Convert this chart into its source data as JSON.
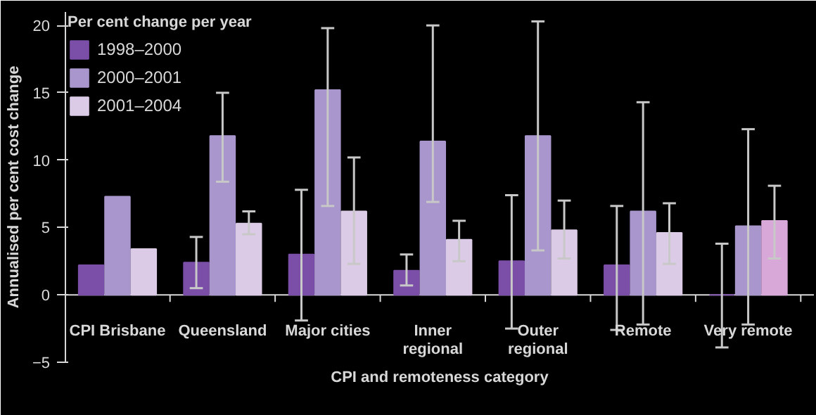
{
  "chart_data": {
    "type": "bar",
    "xlabel": "CPI and remoteness category",
    "ylabel": "Annualised per cent cost change",
    "legend_title": "Per cent change per year",
    "categories": [
      "CPI Brisbane",
      "Queensland",
      "Major cities",
      "Inner\nregional",
      "Outer\nregional",
      "Remote",
      "Very remote"
    ],
    "series": [
      {
        "name": "1998–2000",
        "color": "#7b4fa8",
        "values": [
          2.2,
          2.4,
          3.0,
          1.8,
          2.5,
          2.2,
          0
        ],
        "errors": [
          null,
          [
            0.5,
            4.3
          ],
          [
            -1.9,
            7.8
          ],
          [
            0.7,
            3.0
          ],
          [
            -2.5,
            7.4
          ],
          [
            -2.6,
            6.6
          ],
          [
            -3.9,
            3.8
          ]
        ]
      },
      {
        "name": "2000–2001",
        "color": "#a896cc",
        "values": [
          7.3,
          11.8,
          15.2,
          11.4,
          11.8,
          6.2,
          5.1
        ],
        "errors": [
          null,
          [
            8.4,
            15.0
          ],
          [
            6.6,
            19.8
          ],
          [
            6.9,
            20.0
          ],
          [
            3.3,
            20.3
          ],
          [
            -2.2,
            14.3
          ],
          [
            -2.2,
            12.3
          ]
        ]
      },
      {
        "name": "2001–2004",
        "colors": [
          "#dccbe6",
          "#dccbe6",
          "#dccbe6",
          "#dccbe6",
          "#dccbe6",
          "#dccbe6",
          "#d8a8d8"
        ],
        "values": [
          3.4,
          5.3,
          6.2,
          4.1,
          4.8,
          4.6,
          5.5
        ],
        "errors": [
          null,
          [
            4.5,
            6.2
          ],
          [
            2.3,
            10.2
          ],
          [
            2.5,
            5.5
          ],
          [
            2.7,
            7.0
          ],
          [
            2.3,
            6.8
          ],
          [
            2.7,
            8.1
          ]
        ]
      }
    ],
    "ylim": [
      -5,
      21
    ],
    "yticks": [
      -5,
      0,
      5,
      10,
      15,
      20
    ],
    "legend": "top left",
    "grid": false,
    "ref_lines": [
      {
        "axis": "y",
        "value": 0,
        "color": "#d8d8d8"
      }
    ]
  }
}
